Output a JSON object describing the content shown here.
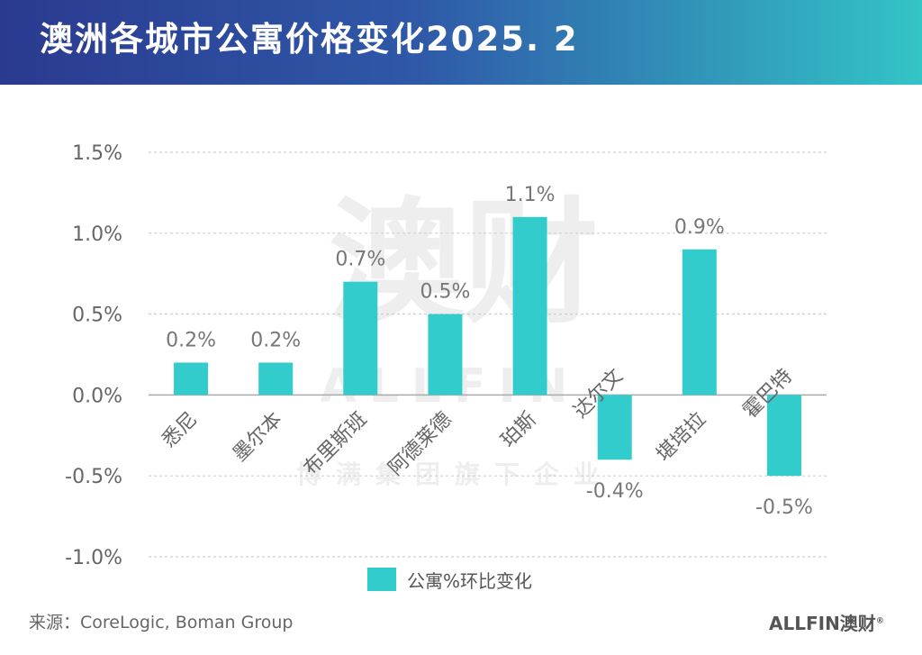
{
  "header": {
    "title": "澳洲各城市公寓价格变化2025. 2"
  },
  "watermark": {
    "big_text": "澳财",
    "sub_text": "ALLFIN",
    "slogan": "博满集团旗下企业"
  },
  "chart_data": {
    "type": "bar",
    "categories": [
      "悉尼",
      "墨尔本",
      "布里斯班",
      "阿德莱德",
      "珀斯",
      "达尔文",
      "堪培拉",
      "霍巴特"
    ],
    "series": [
      {
        "name": "公寓%环比变化",
        "values": [
          0.2,
          0.2,
          0.7,
          0.5,
          1.1,
          -0.4,
          0.9,
          -0.5
        ],
        "labels": [
          "0.2%",
          "0.2%",
          "0.7%",
          "0.5%",
          "1.1%",
          "-0.4%",
          "0.9%",
          "-0.5%"
        ]
      }
    ],
    "ylim": [
      -1.0,
      1.5
    ],
    "yticks": [
      1.5,
      1.0,
      0.5,
      0.0,
      -0.5,
      -1.0
    ],
    "ytick_labels": [
      "1.5%",
      "1.0%",
      "0.5%",
      "0.0%",
      "-0.5%",
      "-1.0%"
    ],
    "bar_color": "#33cccc",
    "grid": true,
    "legend_position": "bottom"
  },
  "footer": {
    "source": "来源：CoreLogic, Boman Group",
    "brand": "ALLFIN澳财",
    "brand_mark": "®"
  }
}
